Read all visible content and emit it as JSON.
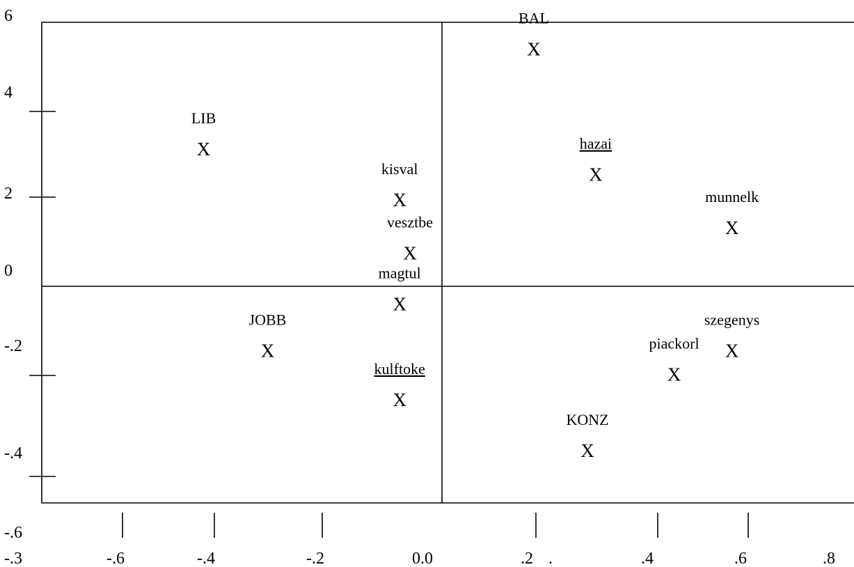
{
  "chart_data": {
    "type": "scatter",
    "title": "",
    "xlabel": "",
    "ylabel": "",
    "marker": "X",
    "x_tick_labels": [
      "-.3",
      "-.6",
      "-.4",
      "-.2",
      "0.0",
      ".2",
      ".",
      ".4",
      ".6",
      ".8"
    ],
    "y_tick_labels": [
      "6",
      "4",
      "2",
      "0",
      "-.2",
      "-.4",
      "-.6"
    ],
    "underlined_labels": [
      "hazai",
      "kulftoke"
    ],
    "points": [
      {
        "label": "BAL",
        "x": 0.2,
        "y": 0.52
      },
      {
        "label": "LIB",
        "x": -0.6,
        "y": 0.285
      },
      {
        "label": "hazai",
        "x": 0.35,
        "y": 0.225
      },
      {
        "label": "kisval",
        "x": -0.125,
        "y": 0.165
      },
      {
        "label": "munnelk",
        "x": 0.68,
        "y": 0.1
      },
      {
        "label": "vesztbe",
        "x": -0.1,
        "y": 0.04
      },
      {
        "label": "magtul",
        "x": -0.125,
        "y": -0.08
      },
      {
        "label": "JOBB",
        "x": -0.445,
        "y": -0.19
      },
      {
        "label": "szegenys",
        "x": 0.68,
        "y": -0.19
      },
      {
        "label": "piackorl",
        "x": 0.54,
        "y": -0.245
      },
      {
        "label": "kulftoke",
        "x": -0.125,
        "y": -0.305
      },
      {
        "label": "KONZ",
        "x": 0.33,
        "y": -0.425
      }
    ]
  }
}
